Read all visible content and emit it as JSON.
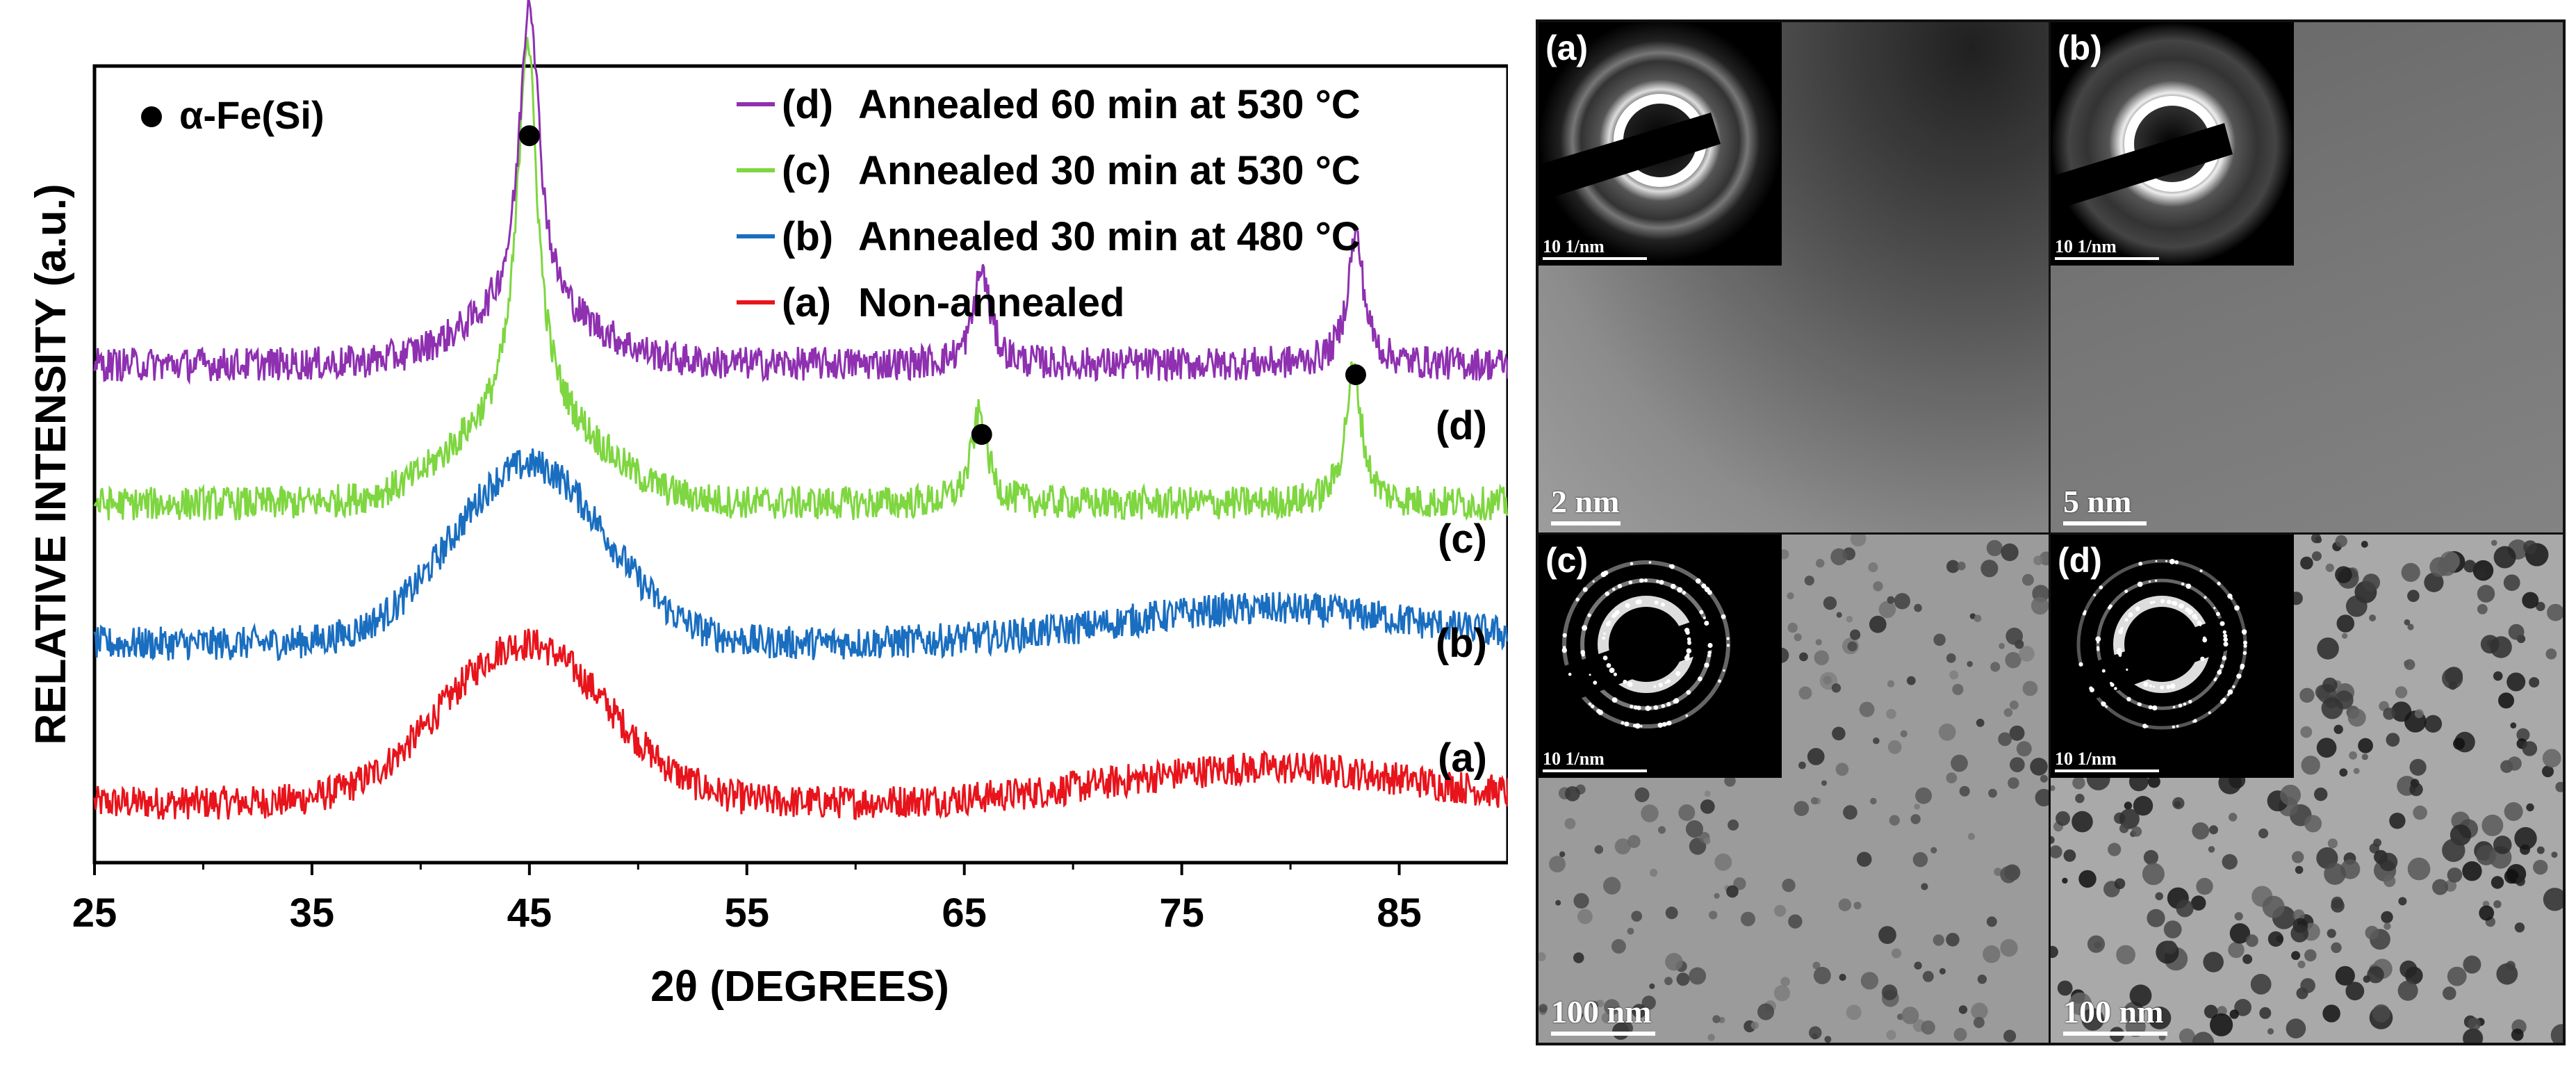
{
  "chart_data": {
    "type": "line",
    "xlabel": "2θ (DEGREES)",
    "ylabel": "RELATIVE INTENSITY (a.u.)",
    "xlim": [
      25,
      90
    ],
    "ylim": [
      0,
      8
    ],
    "xticks": [
      "25",
      "35",
      "45",
      "55",
      "65",
      "75",
      "85"
    ],
    "phase_marker_label": "α-Fe(Si)",
    "peak_markers": [
      {
        "x": 45,
        "y": 7.3
      },
      {
        "x": 65.8,
        "y": 4.3
      },
      {
        "x": 83,
        "y": 4.9
      }
    ],
    "series": [
      {
        "id": "a",
        "key": "(a)",
        "name": "Non-annealed",
        "curve_label": "(a)",
        "color": "#e8141c",
        "baseline": 0.6,
        "peaks": [
          {
            "x": 44.8,
            "h": 1.6,
            "w": 3.8,
            "shape": "gauss"
          },
          {
            "x": 79,
            "h": 0.35,
            "w": 7,
            "shape": "gauss"
          }
        ]
      },
      {
        "id": "b",
        "key": "(b)",
        "name": "Annealed 30 min at 480 °C",
        "curve_label": "(b)",
        "color": "#1a6ec0",
        "baseline": 2.2,
        "peaks": [
          {
            "x": 45,
            "h": 1.8,
            "w": 3.5,
            "shape": "gauss"
          },
          {
            "x": 79,
            "h": 0.35,
            "w": 7,
            "shape": "gauss"
          }
        ]
      },
      {
        "id": "c",
        "key": "(c)",
        "name": "Annealed 30 min at 530 °C",
        "curve_label": "(c)",
        "color": "#7ed640",
        "baseline": 3.6,
        "peaks": [
          {
            "x": 44.9,
            "h": 3.8,
            "w": 0.55,
            "shape": "lorentz"
          },
          {
            "x": 44.9,
            "h": 0.9,
            "w": 3.2,
            "shape": "gauss"
          },
          {
            "x": 65.7,
            "h": 0.9,
            "w": 0.45,
            "shape": "lorentz"
          },
          {
            "x": 82.9,
            "h": 1.35,
            "w": 0.45,
            "shape": "lorentz"
          }
        ]
      },
      {
        "id": "d",
        "key": "(d)",
        "name": "Annealed 60 min at 530 °C",
        "curve_label": "(d)",
        "color": "#8e30b0",
        "baseline": 5.0,
        "peaks": [
          {
            "x": 45,
            "h": 3.2,
            "w": 0.55,
            "shape": "lorentz"
          },
          {
            "x": 45,
            "h": 0.5,
            "w": 3.0,
            "shape": "gauss"
          },
          {
            "x": 65.8,
            "h": 0.95,
            "w": 0.45,
            "shape": "lorentz"
          },
          {
            "x": 83,
            "h": 1.3,
            "w": 0.45,
            "shape": "lorentz"
          }
        ]
      }
    ]
  },
  "tem_panels": [
    {
      "id": "a",
      "label": "(a)",
      "scale_text": "2 nm",
      "inset_scale_text": "10 1/nm"
    },
    {
      "id": "b",
      "label": "(b)",
      "scale_text": "5 nm",
      "inset_scale_text": "10 1/nm"
    },
    {
      "id": "c",
      "label": "(c)",
      "scale_text": "100 nm",
      "inset_scale_text": "10 1/nm"
    },
    {
      "id": "d",
      "label": "(d)",
      "scale_text": "100 nm",
      "inset_scale_text": "10 1/nm"
    }
  ]
}
